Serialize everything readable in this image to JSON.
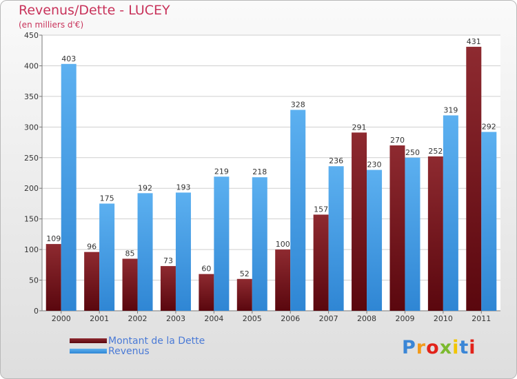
{
  "chart_data": {
    "type": "bar",
    "title": "Revenus/Dette - LUCEY",
    "subtitle": "(en milliers d'€)",
    "categories": [
      "2000",
      "2001",
      "2002",
      "2003",
      "2004",
      "2005",
      "2006",
      "2007",
      "2008",
      "2009",
      "2010",
      "2011"
    ],
    "series": [
      {
        "name": "Montant de la Dette",
        "color": "#6b0f16",
        "values": [
          109,
          96,
          85,
          73,
          60,
          52,
          100,
          157,
          291,
          270,
          252,
          431
        ]
      },
      {
        "name": "Revenus",
        "color": "#3f9be6",
        "values": [
          403,
          175,
          192,
          193,
          219,
          218,
          328,
          236,
          230,
          250,
          319,
          292
        ]
      }
    ],
    "ylim": [
      0,
      450
    ],
    "yticks": [
      0,
      50,
      100,
      150,
      200,
      250,
      300,
      350,
      400,
      450
    ],
    "grid": true,
    "legend_position": "bottom-left"
  },
  "logo": {
    "text": "Proxiti",
    "colors": [
      "#3a86d6",
      "#f29a1a",
      "#e2231a",
      "#7cba2f",
      "#f2c500",
      "#3a86d6",
      "#e2231a"
    ]
  }
}
